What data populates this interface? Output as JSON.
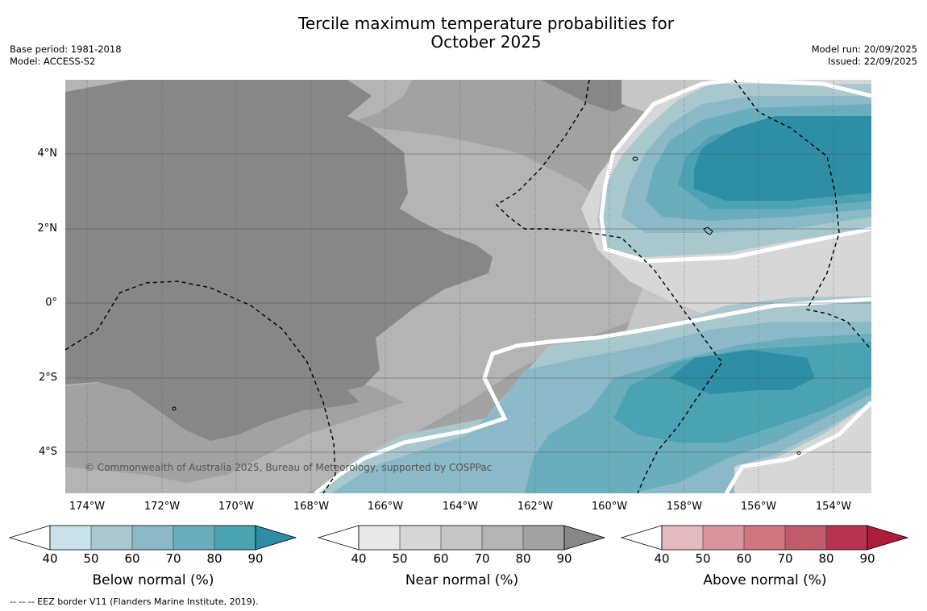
{
  "title": {
    "line1": "Tercile maximum temperature probabilities for",
    "line2": "October 2025"
  },
  "meta_left": {
    "base_period": "Base period: 1981-2018",
    "model": "Model: ACCESS-S2"
  },
  "meta_right": {
    "model_run": "Model run: 20/09/2025",
    "issued": "Issued: 22/09/2025"
  },
  "map": {
    "lon_range": [
      -174.6,
      -152.9
    ],
    "lat_range": [
      -5.1,
      5.85
    ],
    "lat_ticks": [
      "4°N",
      "2°N",
      "0°",
      "2°S",
      "4°S"
    ],
    "lon_ticks": [
      "174°W",
      "172°W",
      "170°W",
      "168°W",
      "166°W",
      "164°W",
      "162°W",
      "160°W",
      "158°W",
      "156°W",
      "154°W"
    ],
    "copyright": "© Commonwealth of Australia 2025, Bureau of Meteorology, supported by COSPPac"
  },
  "colorbars": [
    {
      "label": "Below normal (%)",
      "ticks": [
        "40",
        "50",
        "60",
        "70",
        "80",
        "90"
      ],
      "colors": [
        "#ffffff",
        "#cae3ea",
        "#a8c8ce",
        "#8cb9c8",
        "#6aaebd",
        "#4ba2b2",
        "#2e8ea5"
      ]
    },
    {
      "label": "Near normal (%)",
      "ticks": [
        "40",
        "50",
        "60",
        "70",
        "80",
        "90"
      ],
      "colors": [
        "#ffffff",
        "#e8e8e8",
        "#d7d7d7",
        "#c6c6c6",
        "#b4b4b4",
        "#a2a2a2",
        "#878787"
      ]
    },
    {
      "label": "Above normal (%)",
      "ticks": [
        "40",
        "50",
        "60",
        "70",
        "80",
        "90"
      ],
      "colors": [
        "#ffffff",
        "#e4b9c0",
        "#d9959e",
        "#cd7680",
        "#c25b6b",
        "#b83350",
        "#ae1c3c"
      ]
    }
  ],
  "footnote": "-- -- -- EEZ border V11 (Flanders Marine Institute, 2019)."
}
